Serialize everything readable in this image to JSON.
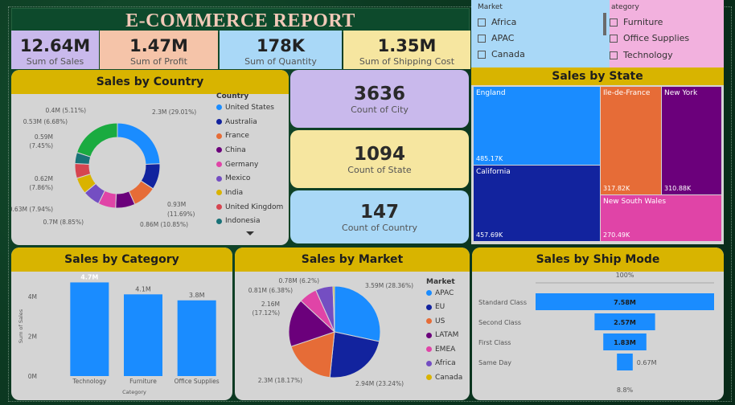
{
  "title": "E-COMMERCE REPORT",
  "colors": {
    "blue": "#1a8cff",
    "navy": "#12239e",
    "orange": "#e66c37",
    "purple": "#6b007b",
    "pink": "#e044a7",
    "gold": "#d9b300",
    "red": "#d64550",
    "teal": "#197278",
    "green": "#1aab40",
    "violet": "#744ec2"
  },
  "kpis": [
    {
      "value": "12.64M",
      "label": "Sum of Sales",
      "bg": "#c9b9ec"
    },
    {
      "value": "1.47M",
      "label": "Sum of Profit",
      "bg": "#f5c4a9"
    },
    {
      "value": "178K",
      "label": "Sum of Quantity",
      "bg": "#a9d8f7"
    },
    {
      "value": "1.35M",
      "label": "Sum of Shipping Cost",
      "bg": "#f6e6a0"
    }
  ],
  "counts": [
    {
      "value": "3636",
      "label": "Count of City",
      "bg": "#c9b9ec"
    },
    {
      "value": "1094",
      "label": "Count of State",
      "bg": "#f6e6a0"
    },
    {
      "value": "147",
      "label": "Count of Country",
      "bg": "#a9d8f7"
    }
  ],
  "slicers": {
    "market": {
      "header": "Market",
      "items": [
        "Africa",
        "APAC",
        "Canada"
      ]
    },
    "category": {
      "header": "ategory",
      "items": [
        "Furniture",
        "Office Supplies",
        "Technology"
      ]
    }
  },
  "country": {
    "title": "Sales by Country",
    "legend_title": "Country",
    "legend": [
      "United States",
      "Australia",
      "France",
      "China",
      "Germany",
      "Mexico",
      "India",
      "United Kingdom",
      "Indonesia"
    ],
    "labels": [
      "2.3M (29.01%)",
      "0.93M",
      "(11.69%)",
      "0.86M (10.85%)",
      "0.7M (8.85%)",
      "0.63M (7.94%)",
      "0.62M",
      "(7.86%)",
      "0.59M",
      "(7.45%)",
      "0.53M (6.68%)",
      "0.4M (5.11%)"
    ]
  },
  "state": {
    "title": "Sales by State",
    "tiles": [
      {
        "name": "England",
        "value": "485.17K"
      },
      {
        "name": "Ile-de-France",
        "value": "317.82K"
      },
      {
        "name": "New York",
        "value": "310.88K"
      },
      {
        "name": "California",
        "value": "457.69K"
      },
      {
        "name": "New South Wales",
        "value": "270.49K"
      }
    ]
  },
  "category": {
    "title": "Sales by Category",
    "ylabel": "Sum of Sales",
    "xlabel": "Category",
    "yticks": [
      "4M",
      "2M",
      "0M"
    ],
    "bar_labels": [
      "4.7M",
      "4.1M",
      "3.8M"
    ]
  },
  "market": {
    "title": "Sales by Market",
    "legend_title": "Market",
    "legend": [
      "APAC",
      "EU",
      "US",
      "LATAM",
      "EMEA",
      "Africa",
      "Canada"
    ],
    "labels": [
      "3.59M (28.36%)",
      "2.94M (23.24%)",
      "2.3M (18.17%)",
      "2.16M",
      "(17.12%)",
      "0.81M (6.38%)",
      "0.78M (6.2%)"
    ]
  },
  "shipmode": {
    "title": "Sales by Ship Mode",
    "top": "100%",
    "bottom": "8.8%",
    "labels": [
      "7.58M",
      "2.57M",
      "1.83M",
      "0.67M"
    ]
  },
  "chart_data": [
    {
      "type": "pie",
      "title": "Sales by Country",
      "categories": [
        "United States",
        "Australia",
        "France",
        "China",
        "Germany",
        "Mexico",
        "India",
        "United Kingdom",
        "Indonesia"
      ],
      "values": [
        2.3,
        0.93,
        0.86,
        0.7,
        0.63,
        0.62,
        0.59,
        0.53,
        0.4
      ]
    },
    {
      "type": "bar",
      "title": "Sales by Category",
      "categories": [
        "Technology",
        "Furniture",
        "Office Supplies"
      ],
      "values": [
        4.7,
        4.1,
        3.8
      ],
      "ylim": [
        0,
        5
      ]
    },
    {
      "type": "pie",
      "title": "Sales by Market",
      "categories": [
        "APAC",
        "EU",
        "US",
        "LATAM",
        "EMEA",
        "Africa",
        "Canada"
      ],
      "values": [
        3.59,
        2.94,
        2.3,
        2.16,
        0.81,
        0.78,
        0.07
      ]
    },
    {
      "type": "bar",
      "title": "Sales by Ship Mode",
      "categories": [
        "Standard Class",
        "Second Class",
        "First Class",
        "Same Day"
      ],
      "values": [
        7.58,
        2.57,
        1.83,
        0.67
      ]
    },
    {
      "type": "heatmap",
      "title": "Sales by State",
      "categories": [
        "England",
        "Ile-de-France",
        "New York",
        "California",
        "New South Wales"
      ],
      "values": [
        485.17,
        317.82,
        310.88,
        457.69,
        270.49
      ]
    }
  ]
}
